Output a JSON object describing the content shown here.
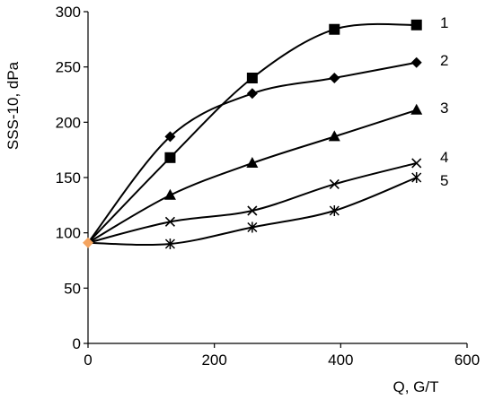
{
  "chart_data": {
    "type": "line",
    "xlabel": "Q, G/T",
    "ylabel": "SSS-10, dPa",
    "xlim": [
      0,
      600
    ],
    "ylim": [
      0,
      300
    ],
    "xticks": [
      "0",
      "200",
      "400",
      "600"
    ],
    "yticks": [
      "0",
      "50",
      "100",
      "150",
      "200",
      "250",
      "300"
    ],
    "grid": false,
    "legend": "none",
    "start_point": {
      "x": 0,
      "y": 91,
      "color": "#f4a460"
    },
    "series": [
      {
        "name": "1",
        "marker": "square",
        "x": [
          0,
          130,
          260,
          390,
          520
        ],
        "values": [
          91,
          168,
          240,
          284,
          288
        ]
      },
      {
        "name": "2",
        "marker": "diamond",
        "x": [
          0,
          130,
          260,
          390,
          520
        ],
        "values": [
          91,
          187,
          226,
          240,
          254
        ]
      },
      {
        "name": "3",
        "marker": "triangle",
        "x": [
          0,
          130,
          260,
          390,
          520
        ],
        "values": [
          91,
          134,
          163,
          187,
          211
        ]
      },
      {
        "name": "4",
        "marker": "x",
        "x": [
          0,
          130,
          260,
          390,
          520
        ],
        "values": [
          91,
          110,
          120,
          144,
          163
        ]
      },
      {
        "name": "5",
        "marker": "asterisk",
        "x": [
          0,
          130,
          260,
          390,
          520
        ],
        "values": [
          91,
          90,
          105,
          120,
          150
        ]
      }
    ]
  }
}
